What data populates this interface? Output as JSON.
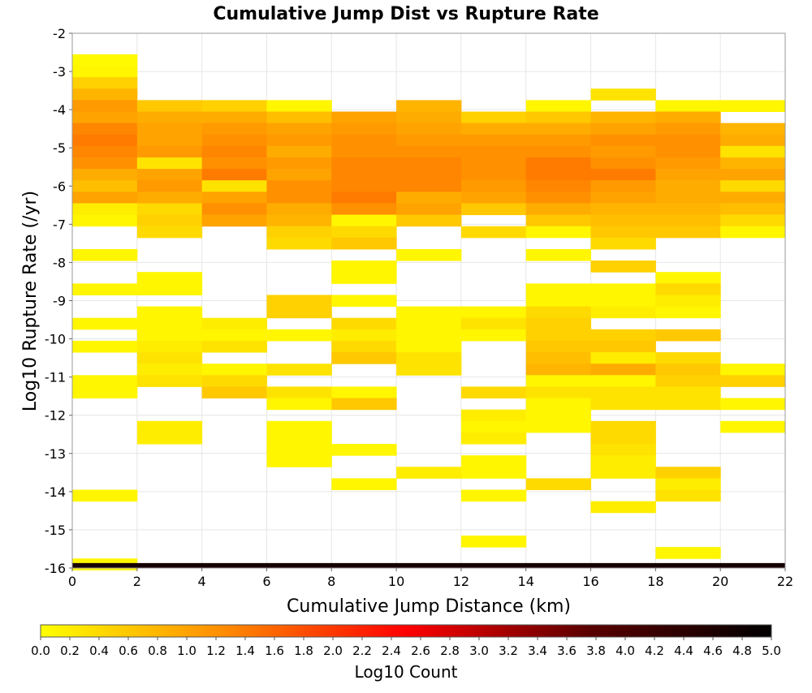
{
  "chart_data": {
    "type": "heatmap",
    "title": "Cumulative Jump Dist vs Rupture Rate",
    "xlabel": "Cumulative Jump Distance (km)",
    "ylabel": "Log10 Rupture Rate (/yr)",
    "xlim": [
      0,
      22
    ],
    "ylim": [
      -16,
      -2
    ],
    "x_ticks": [
      "0",
      "2",
      "4",
      "6",
      "8",
      "10",
      "12",
      "14",
      "16",
      "18",
      "20",
      "22"
    ],
    "y_ticks": [
      "-16",
      "-15",
      "-14",
      "-13",
      "-12",
      "-11",
      "-10",
      "-9",
      "-8",
      "-7",
      "-6",
      "-5",
      "-4",
      "-3",
      "-2"
    ],
    "x_bin_width": 2,
    "y_bin_height": 0.3,
    "grid": true,
    "colorbar": {
      "label": "Log10 Count",
      "range": [
        0,
        5
      ],
      "ticks": [
        "0.0",
        "0.2",
        "0.4",
        "0.6",
        "0.8",
        "1.0",
        "1.2",
        "1.4",
        "1.6",
        "1.8",
        "2.0",
        "2.2",
        "2.4",
        "2.6",
        "2.8",
        "3.0",
        "3.2",
        "3.4",
        "3.6",
        "3.8",
        "4.0",
        "4.2",
        "4.4",
        "4.6",
        "4.8",
        "5.0"
      ],
      "placement": "bottom",
      "colormap": [
        "#ffff00",
        "#ff8c00",
        "#ff0000",
        "#5a0000",
        "#000000"
      ]
    },
    "columns": [
      {
        "x": [
          0,
          2
        ],
        "cells": [
          [
            -2.7,
            0.05
          ],
          [
            -3.0,
            0.1
          ],
          [
            -3.3,
            0.5
          ],
          [
            -3.6,
            0.8
          ],
          [
            -3.9,
            1.1
          ],
          [
            -4.2,
            1.0
          ],
          [
            -4.5,
            1.3
          ],
          [
            -4.8,
            1.4
          ],
          [
            -5.1,
            1.3
          ],
          [
            -5.4,
            1.2
          ],
          [
            -5.7,
            0.9
          ],
          [
            -6.0,
            0.7
          ],
          [
            -6.3,
            1.0
          ],
          [
            -6.6,
            0.2
          ],
          [
            -6.9,
            0.1
          ],
          [
            -7.8,
            0.1
          ],
          [
            -8.7,
            0.1
          ],
          [
            -9.6,
            0.1
          ],
          [
            -10.2,
            0.1
          ],
          [
            -11.1,
            0.1
          ],
          [
            -11.4,
            0.1
          ],
          [
            -14.1,
            0.1
          ],
          [
            -15.9,
            0.1
          ],
          [
            -16.0,
            4.7
          ]
        ]
      },
      {
        "x": [
          2,
          4
        ],
        "cells": [
          [
            -3.9,
            0.6
          ],
          [
            -4.2,
            0.9
          ],
          [
            -4.5,
            1.0
          ],
          [
            -4.8,
            1.0
          ],
          [
            -5.1,
            1.1
          ],
          [
            -5.4,
            0.3
          ],
          [
            -5.7,
            1.0
          ],
          [
            -6.0,
            1.1
          ],
          [
            -6.3,
            0.9
          ],
          [
            -6.6,
            0.4
          ],
          [
            -6.9,
            0.5
          ],
          [
            -7.2,
            0.4
          ],
          [
            -8.4,
            0.1
          ],
          [
            -8.7,
            0.1
          ],
          [
            -9.3,
            0.1
          ],
          [
            -9.6,
            0.1
          ],
          [
            -9.9,
            0.1
          ],
          [
            -10.2,
            0.2
          ],
          [
            -10.5,
            0.3
          ],
          [
            -10.8,
            0.2
          ],
          [
            -11.1,
            0.3
          ],
          [
            -12.3,
            0.2
          ],
          [
            -12.6,
            0.2
          ],
          [
            -16.0,
            4.7
          ]
        ]
      },
      {
        "x": [
          4,
          6
        ],
        "cells": [
          [
            -3.9,
            0.5
          ],
          [
            -4.2,
            0.9
          ],
          [
            -4.5,
            1.1
          ],
          [
            -4.8,
            1.2
          ],
          [
            -5.1,
            1.3
          ],
          [
            -5.4,
            1.2
          ],
          [
            -5.7,
            1.4
          ],
          [
            -6.0,
            0.3
          ],
          [
            -6.3,
            1.0
          ],
          [
            -6.6,
            1.2
          ],
          [
            -6.9,
            1.0
          ],
          [
            -9.6,
            0.2
          ],
          [
            -9.9,
            0.1
          ],
          [
            -10.2,
            0.3
          ],
          [
            -10.8,
            0.1
          ],
          [
            -11.1,
            0.4
          ],
          [
            -11.4,
            0.6
          ],
          [
            -16.0,
            4.7
          ]
        ]
      },
      {
        "x": [
          6,
          8
        ],
        "cells": [
          [
            -3.9,
            0.1
          ],
          [
            -4.2,
            0.7
          ],
          [
            -4.5,
            1.0
          ],
          [
            -4.8,
            1.1
          ],
          [
            -5.1,
            0.9
          ],
          [
            -5.4,
            1.1
          ],
          [
            -5.7,
            1.0
          ],
          [
            -6.0,
            1.2
          ],
          [
            -6.3,
            1.2
          ],
          [
            -6.6,
            0.9
          ],
          [
            -6.9,
            0.8
          ],
          [
            -7.2,
            0.5
          ],
          [
            -7.5,
            0.4
          ],
          [
            -9.0,
            0.5
          ],
          [
            -9.3,
            0.5
          ],
          [
            -9.9,
            0.1
          ],
          [
            -10.8,
            0.3
          ],
          [
            -11.4,
            0.3
          ],
          [
            -11.7,
            0.1
          ],
          [
            -12.3,
            0.1
          ],
          [
            -12.6,
            0.1
          ],
          [
            -12.9,
            0.1
          ],
          [
            -13.2,
            0.1
          ],
          [
            -16.0,
            4.7
          ]
        ]
      },
      {
        "x": [
          8,
          10
        ],
        "cells": [
          [
            -4.2,
            1.0
          ],
          [
            -4.5,
            1.1
          ],
          [
            -4.8,
            1.2
          ],
          [
            -5.1,
            1.2
          ],
          [
            -5.4,
            1.3
          ],
          [
            -5.7,
            1.3
          ],
          [
            -6.0,
            1.3
          ],
          [
            -6.3,
            1.4
          ],
          [
            -6.6,
            1.2
          ],
          [
            -6.9,
            0.1
          ],
          [
            -7.2,
            0.4
          ],
          [
            -7.5,
            0.6
          ],
          [
            -8.1,
            0.1
          ],
          [
            -8.4,
            0.1
          ],
          [
            -9.0,
            0.1
          ],
          [
            -9.6,
            0.4
          ],
          [
            -9.9,
            0.2
          ],
          [
            -10.2,
            0.4
          ],
          [
            -10.5,
            0.6
          ],
          [
            -11.4,
            0.1
          ],
          [
            -11.7,
            0.6
          ],
          [
            -12.9,
            0.1
          ],
          [
            -13.8,
            0.1
          ],
          [
            -16.0,
            4.7
          ]
        ]
      },
      {
        "x": [
          10,
          12
        ],
        "cells": [
          [
            -3.9,
            0.8
          ],
          [
            -4.2,
            0.9
          ],
          [
            -4.5,
            1.0
          ],
          [
            -4.8,
            1.1
          ],
          [
            -5.1,
            1.2
          ],
          [
            -5.4,
            1.3
          ],
          [
            -5.7,
            1.3
          ],
          [
            -6.0,
            1.3
          ],
          [
            -6.3,
            0.9
          ],
          [
            -6.6,
            1.0
          ],
          [
            -6.9,
            0.6
          ],
          [
            -7.8,
            0.1
          ],
          [
            -9.3,
            0.1
          ],
          [
            -9.6,
            0.1
          ],
          [
            -9.9,
            0.1
          ],
          [
            -10.2,
            0.1
          ],
          [
            -10.5,
            0.3
          ],
          [
            -10.8,
            0.3
          ],
          [
            -13.5,
            0.2
          ],
          [
            -16.0,
            4.7
          ]
        ]
      },
      {
        "x": [
          12,
          14
        ],
        "cells": [
          [
            -4.2,
            0.5
          ],
          [
            -4.5,
            0.9
          ],
          [
            -4.8,
            1.1
          ],
          [
            -5.1,
            1.2
          ],
          [
            -5.4,
            1.2
          ],
          [
            -5.7,
            1.2
          ],
          [
            -6.0,
            1.1
          ],
          [
            -6.3,
            1.0
          ],
          [
            -6.6,
            0.6
          ],
          [
            -7.2,
            0.4
          ],
          [
            -9.3,
            0.1
          ],
          [
            -9.6,
            0.3
          ],
          [
            -9.9,
            0.1
          ],
          [
            -11.4,
            0.4
          ],
          [
            -12.0,
            0.2
          ],
          [
            -12.3,
            0.1
          ],
          [
            -12.6,
            0.2
          ],
          [
            -13.2,
            0.1
          ],
          [
            -13.5,
            0.1
          ],
          [
            -14.1,
            0.1
          ],
          [
            -15.3,
            0.1
          ],
          [
            -16.0,
            4.7
          ]
        ]
      },
      {
        "x": [
          14,
          16
        ],
        "cells": [
          [
            -3.9,
            0.1
          ],
          [
            -4.2,
            0.6
          ],
          [
            -4.5,
            0.9
          ],
          [
            -4.8,
            1.1
          ],
          [
            -5.1,
            1.2
          ],
          [
            -5.4,
            1.4
          ],
          [
            -5.7,
            1.4
          ],
          [
            -6.0,
            1.3
          ],
          [
            -6.3,
            1.2
          ],
          [
            -6.6,
            0.9
          ],
          [
            -6.9,
            0.6
          ],
          [
            -7.2,
            0.1
          ],
          [
            -7.8,
            0.1
          ],
          [
            -8.7,
            0.1
          ],
          [
            -9.0,
            0.1
          ],
          [
            -9.3,
            0.4
          ],
          [
            -9.6,
            0.5
          ],
          [
            -9.9,
            0.5
          ],
          [
            -10.2,
            0.6
          ],
          [
            -10.5,
            0.7
          ],
          [
            -10.8,
            0.8
          ],
          [
            -11.1,
            0.1
          ],
          [
            -11.4,
            0.3
          ],
          [
            -11.7,
            0.1
          ],
          [
            -12.0,
            0.1
          ],
          [
            -12.3,
            0.1
          ],
          [
            -13.8,
            0.4
          ],
          [
            -16.0,
            4.7
          ]
        ]
      },
      {
        "x": [
          16,
          18
        ],
        "cells": [
          [
            -3.6,
            0.3
          ],
          [
            -4.2,
            0.8
          ],
          [
            -4.5,
            1.0
          ],
          [
            -4.8,
            1.2
          ],
          [
            -5.1,
            1.1
          ],
          [
            -5.4,
            1.2
          ],
          [
            -5.7,
            1.4
          ],
          [
            -6.0,
            1.1
          ],
          [
            -6.3,
            1.0
          ],
          [
            -6.6,
            0.8
          ],
          [
            -6.9,
            0.7
          ],
          [
            -7.2,
            0.6
          ],
          [
            -7.5,
            0.4
          ],
          [
            -8.1,
            0.5
          ],
          [
            -8.7,
            0.1
          ],
          [
            -9.0,
            0.1
          ],
          [
            -9.3,
            0.2
          ],
          [
            -9.9,
            0.5
          ],
          [
            -10.2,
            0.6
          ],
          [
            -10.5,
            0.2
          ],
          [
            -10.8,
            0.9
          ],
          [
            -11.1,
            0.1
          ],
          [
            -11.4,
            0.3
          ],
          [
            -11.7,
            0.3
          ],
          [
            -12.3,
            0.4
          ],
          [
            -12.6,
            0.4
          ],
          [
            -12.9,
            0.3
          ],
          [
            -13.2,
            0.2
          ],
          [
            -13.5,
            0.2
          ],
          [
            -14.4,
            0.2
          ],
          [
            -16.0,
            4.7
          ]
        ]
      },
      {
        "x": [
          18,
          20
        ],
        "cells": [
          [
            -3.9,
            0.1
          ],
          [
            -4.2,
            0.9
          ],
          [
            -4.5,
            1.1
          ],
          [
            -4.8,
            1.2
          ],
          [
            -5.1,
            1.2
          ],
          [
            -5.4,
            1.1
          ],
          [
            -5.7,
            1.0
          ],
          [
            -6.0,
            0.9
          ],
          [
            -6.3,
            0.9
          ],
          [
            -6.6,
            0.8
          ],
          [
            -6.9,
            0.7
          ],
          [
            -7.2,
            0.6
          ],
          [
            -8.4,
            0.1
          ],
          [
            -8.7,
            0.4
          ],
          [
            -9.0,
            0.2
          ],
          [
            -9.3,
            0.1
          ],
          [
            -9.9,
            0.6
          ],
          [
            -10.5,
            0.4
          ],
          [
            -10.8,
            0.6
          ],
          [
            -11.1,
            0.5
          ],
          [
            -11.4,
            0.3
          ],
          [
            -11.7,
            0.3
          ],
          [
            -13.5,
            0.5
          ],
          [
            -13.8,
            0.2
          ],
          [
            -14.1,
            0.3
          ],
          [
            -15.6,
            0.1
          ],
          [
            -16.0,
            4.7
          ]
        ]
      },
      {
        "x": [
          20,
          22
        ],
        "cells": [
          [
            -3.9,
            0.1
          ],
          [
            -4.5,
            0.8
          ],
          [
            -4.8,
            0.9
          ],
          [
            -5.1,
            0.3
          ],
          [
            -5.4,
            0.8
          ],
          [
            -5.7,
            1.0
          ],
          [
            -6.0,
            0.4
          ],
          [
            -6.3,
            0.9
          ],
          [
            -6.6,
            0.7
          ],
          [
            -6.9,
            0.4
          ],
          [
            -7.2,
            0.1
          ],
          [
            -10.8,
            0.1
          ],
          [
            -11.1,
            0.5
          ],
          [
            -11.7,
            0.1
          ],
          [
            -12.3,
            0.1
          ],
          [
            -16.0,
            4.7
          ]
        ]
      }
    ]
  }
}
